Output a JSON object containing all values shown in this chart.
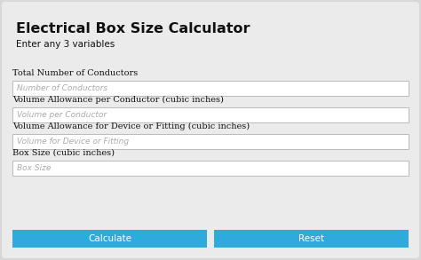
{
  "title": "Electrical Box Size Calculator",
  "subtitle": "Enter any 3 variables",
  "fields": [
    {
      "label": "Total Number of Conductors",
      "placeholder": "Number of Conductors"
    },
    {
      "label": "Volume Allowance per Conductor (cubic inches)",
      "placeholder": "Volume per Conductor"
    },
    {
      "label": "Volume Allowance for Device or Fitting (cubic inches)",
      "placeholder": "Volume for Device or Fitting"
    },
    {
      "label": "Box Size (cubic inches)",
      "placeholder": "Box Size"
    }
  ],
  "buttons": [
    {
      "text": "Calculate",
      "color": "#2eaadc"
    },
    {
      "text": "Reset",
      "color": "#2eaadc"
    }
  ],
  "bg_color": "#d8d8d8",
  "panel_color": "#ebebeb",
  "input_bg": "#ffffff",
  "input_border": "#bbbbbb",
  "label_color": "#111111",
  "placeholder_color": "#aaaaaa",
  "button_text_color": "#ffffff",
  "title_fontsize": 11.5,
  "subtitle_fontsize": 7.5,
  "label_fontsize": 7.0,
  "placeholder_fontsize": 6.5,
  "button_fontsize": 7.5
}
